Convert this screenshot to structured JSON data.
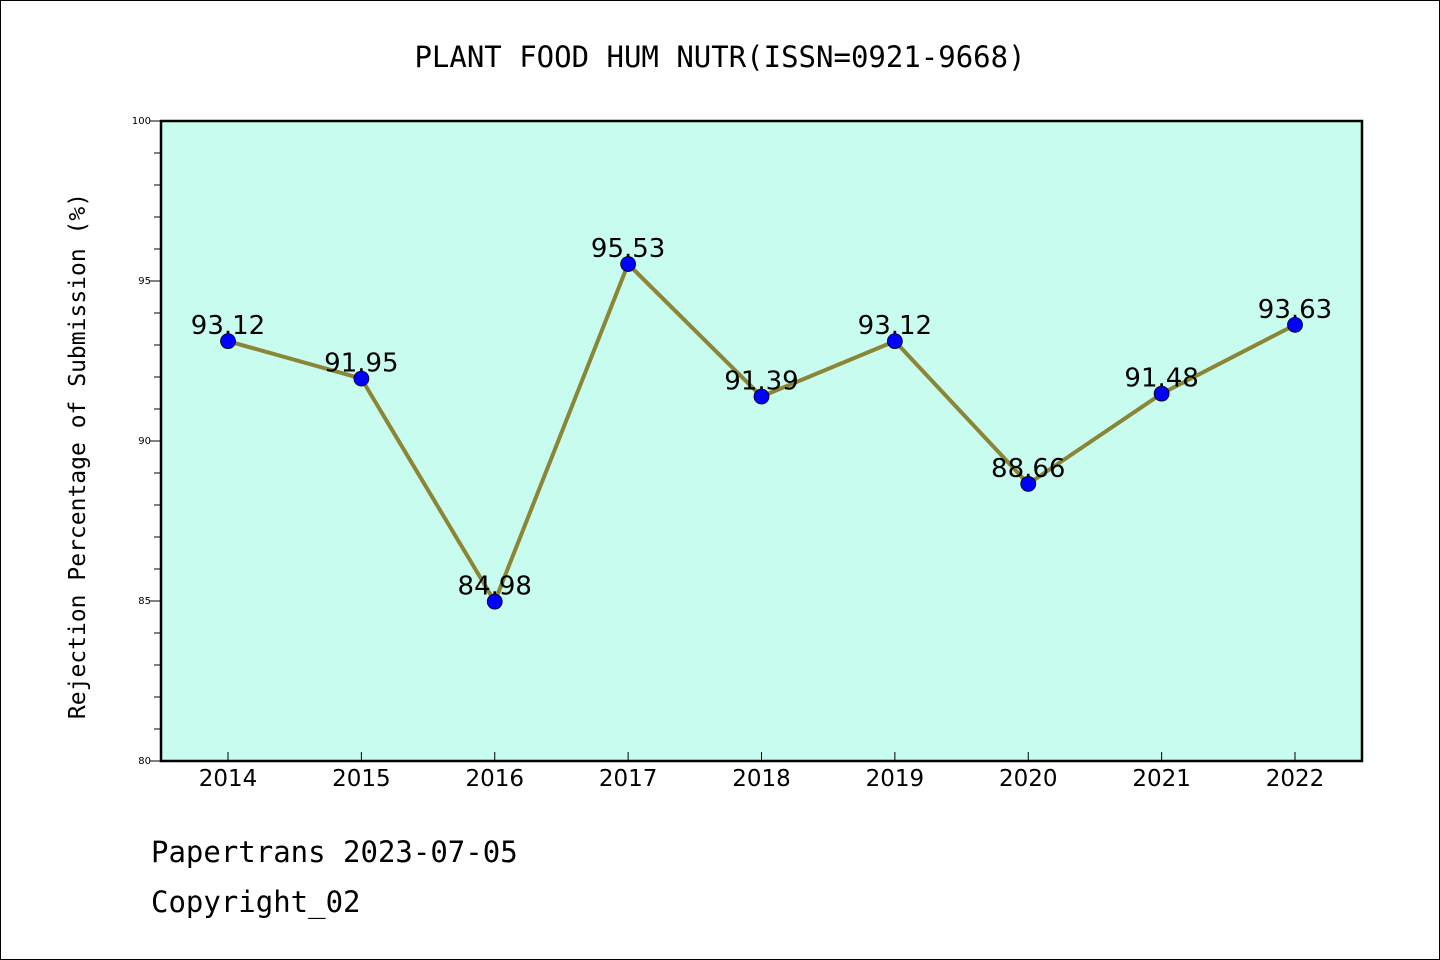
{
  "chart_data": {
    "type": "line",
    "title": "PLANT FOOD HUM NUTR(ISSN=0921-9668)",
    "xlabel": "",
    "ylabel": "Rejection Percentage of Submission (%)",
    "categories": [
      "2014",
      "2015",
      "2016",
      "2017",
      "2018",
      "2019",
      "2020",
      "2021",
      "2022"
    ],
    "values": [
      93.12,
      91.95,
      84.98,
      95.53,
      91.39,
      93.12,
      88.66,
      91.48,
      93.63
    ],
    "data_labels": [
      "93.12",
      "91.95",
      "84.98",
      "95.53",
      "91.39",
      "93.12",
      "88.66",
      "91.48",
      "93.63"
    ],
    "ylim": [
      80,
      100
    ],
    "y_ticks": [
      "80",
      "85",
      "90",
      "95",
      "100"
    ],
    "grid": false,
    "colors": {
      "plot_background": "#c8fcee",
      "line": "#8b8536",
      "marker": "#0000ff"
    }
  },
  "footer": {
    "line1": "Papertrans 2023-07-05",
    "line2": "Copyright_02"
  }
}
